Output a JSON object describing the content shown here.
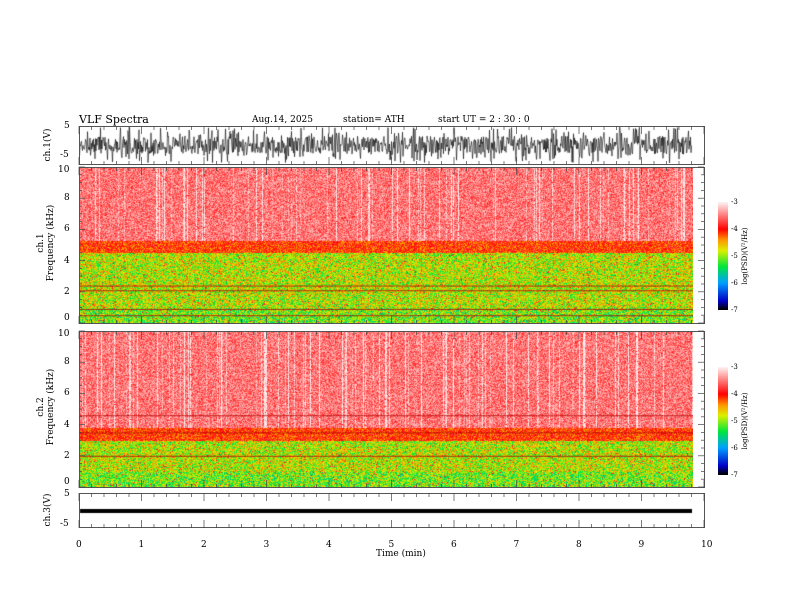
{
  "header": {
    "title": "VLF  Spectra",
    "date": "Aug.14, 2025",
    "station": "station= ATH",
    "start": "start  UT  =   2  : 30 : 0"
  },
  "chart_data": [
    {
      "type": "line",
      "name": "ch1-waveform",
      "ylabel": "ch.1(V)",
      "ylim": [
        -5,
        5
      ],
      "yticks": [
        "5",
        "-5"
      ],
      "xlim": [
        0,
        10
      ],
      "x_end": 9.8
    },
    {
      "type": "heatmap",
      "name": "ch1-spectrogram",
      "ylabel": "ch.1\nFrequency (kHz)",
      "ylabel_top": "ch.1",
      "ylabel_bottom": "Frequency  (kHz)",
      "ylim": [
        0,
        10
      ],
      "yticks": [
        "0",
        "2",
        "4",
        "6",
        "8",
        "10"
      ],
      "xlim": [
        0,
        10
      ],
      "x_end": 9.8,
      "colorbar": {
        "label": "log(PSD)(V²/Hz)",
        "range": [
          -7,
          -3
        ],
        "ticks": [
          "-3",
          "-4",
          "-5",
          "-6",
          "-7"
        ]
      },
      "green_top_khz": 4.5
    },
    {
      "type": "heatmap",
      "name": "ch2-spectrogram",
      "ylabel_top": "ch.2",
      "ylabel_bottom": "Frequency  (kHz)",
      "ylim": [
        0,
        10
      ],
      "yticks": [
        "0",
        "2",
        "4",
        "6",
        "8",
        "10"
      ],
      "xlim": [
        0,
        10
      ],
      "x_end": 9.8,
      "colorbar": {
        "label": "log(PSD)(V²/Hz)",
        "range": [
          -7,
          -3
        ],
        "ticks": [
          "-3",
          "-4",
          "-5",
          "-6",
          "-7"
        ]
      },
      "green_top_khz": 3
    },
    {
      "type": "line",
      "name": "ch3-waveform",
      "ylabel": "ch.3(V)",
      "ylim": [
        -5,
        5
      ],
      "yticks": [
        "5",
        "-5"
      ],
      "xlim": [
        0,
        10
      ],
      "x_end": 9.8,
      "level": 0
    }
  ],
  "xaxis": {
    "label": "Time  (min)",
    "ticks": [
      "0",
      "1",
      "2",
      "3",
      "4",
      "5",
      "6",
      "7",
      "8",
      "9",
      "10"
    ]
  }
}
